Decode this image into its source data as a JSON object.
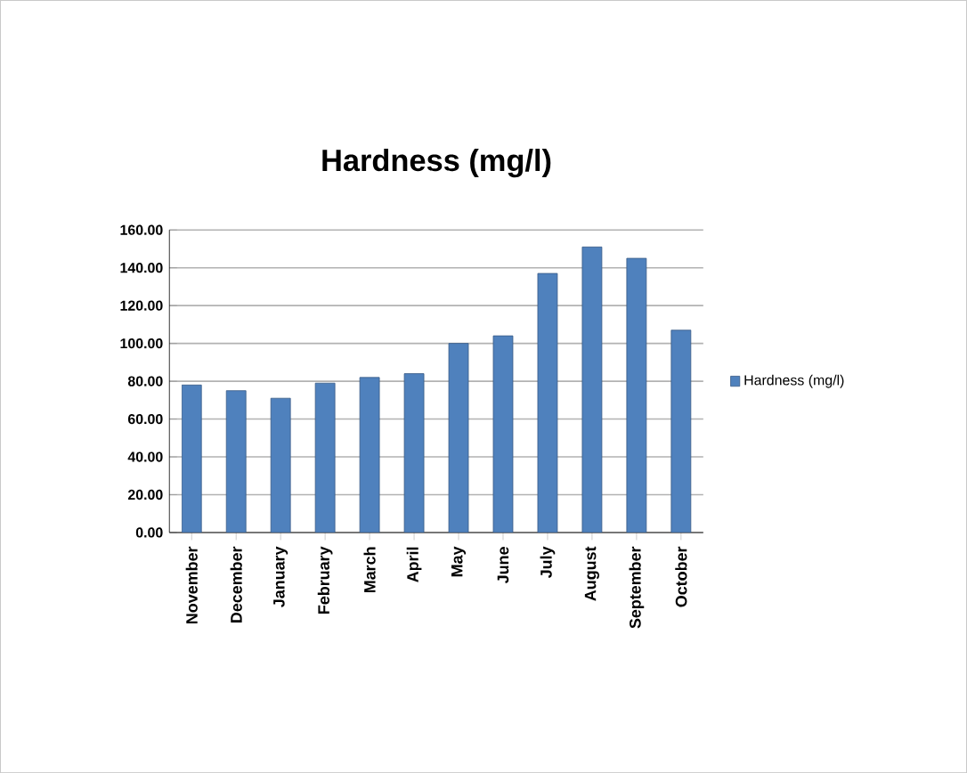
{
  "chart_data": {
    "type": "bar",
    "title": "Hardness (mg/l)",
    "categories": [
      "November",
      "December",
      "January",
      "February",
      "March",
      "April",
      "May",
      "June",
      "July",
      "August",
      "September",
      "October"
    ],
    "series": [
      {
        "name": "Hardness (mg/l)",
        "color": "#4f81bd",
        "values": [
          78,
          75,
          71,
          79,
          82,
          84,
          100,
          104,
          137,
          151,
          145,
          107
        ]
      }
    ],
    "ylim": [
      0,
      160
    ],
    "yticks": [
      {
        "value": 0,
        "label": "0.00"
      },
      {
        "value": 20,
        "label": "20.00"
      },
      {
        "value": 40,
        "label": "40.00"
      },
      {
        "value": 60,
        "label": "60.00"
      },
      {
        "value": 80,
        "label": "80.00"
      },
      {
        "value": 100,
        "label": "100.00"
      },
      {
        "value": 120,
        "label": "120.00"
      },
      {
        "value": 140,
        "label": "140.00"
      },
      {
        "value": 160,
        "label": "160.00"
      }
    ],
    "grid": "y",
    "legend": "right"
  }
}
